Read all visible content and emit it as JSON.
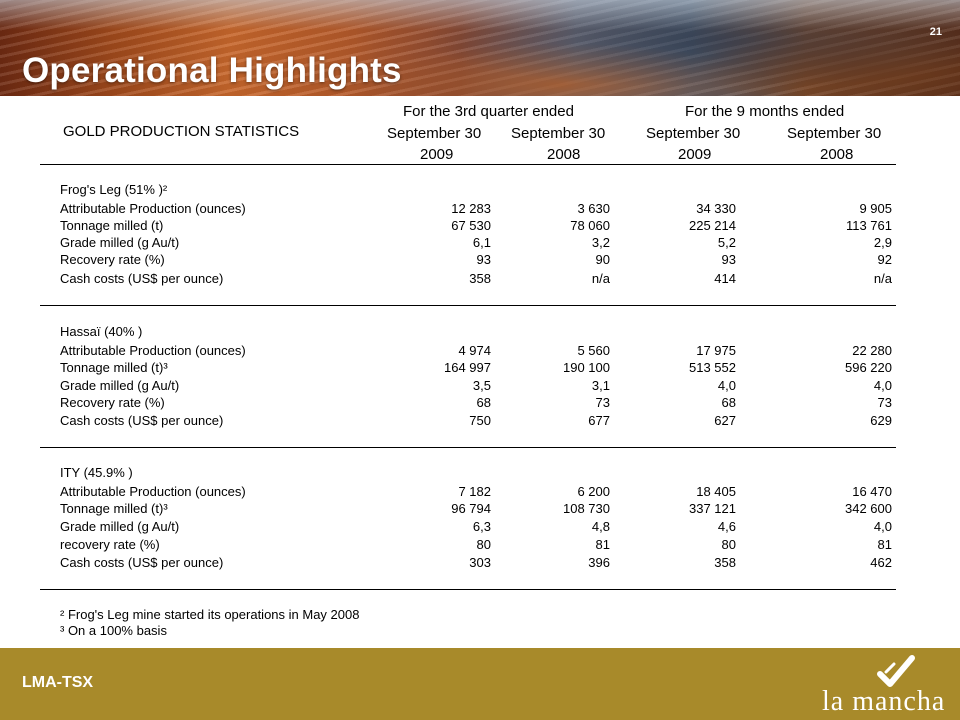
{
  "slide": {
    "title": "Operational Highlights",
    "page_number": "21"
  },
  "table": {
    "main_label": "GOLD PRODUCTION STATISTICS",
    "group_headers": [
      "For the 3rd quarter ended",
      "For the 9 months ended"
    ],
    "columns": [
      {
        "month": "September 30",
        "year": "2009"
      },
      {
        "month": "September 30",
        "year": "2008"
      },
      {
        "month": "September 30",
        "year": "2009"
      },
      {
        "month": "September 30",
        "year": "2008"
      }
    ],
    "sections": [
      {
        "title": "Frog's Leg (51% )²",
        "rows": [
          {
            "label": "Attributable Production (ounces)",
            "values": [
              "12 283",
              "3 630",
              "34 330",
              "9 905"
            ]
          },
          {
            "label": "Tonnage milled (t)",
            "values": [
              "67 530",
              "78 060",
              "225 214",
              "113 761"
            ]
          },
          {
            "label": "Grade milled (g Au/t)",
            "values": [
              "6,1",
              "3,2",
              "5,2",
              "2,9"
            ]
          },
          {
            "label": "Recovery rate (%)",
            "values": [
              "93",
              "90",
              "93",
              "92"
            ]
          },
          {
            "label": "Cash costs (US$ per ounce)",
            "values": [
              "358",
              "n/a",
              "414",
              "n/a"
            ]
          }
        ]
      },
      {
        "title": "Hassaï (40% )",
        "rows": [
          {
            "label": "Attributable Production (ounces)",
            "values": [
              "4 974",
              "5 560",
              "17 975",
              "22 280"
            ]
          },
          {
            "label": "Tonnage milled (t)³",
            "values": [
              "164 997",
              "190 100",
              "513 552",
              "596 220"
            ]
          },
          {
            "label": "Grade milled (g Au/t)",
            "values": [
              "3,5",
              "3,1",
              "4,0",
              "4,0"
            ]
          },
          {
            "label": "Recovery rate (%)",
            "values": [
              "68",
              "73",
              "68",
              "73"
            ]
          },
          {
            "label": "Cash costs (US$ per ounce)",
            "values": [
              "750",
              "677",
              "627",
              "629"
            ]
          }
        ]
      },
      {
        "title": "ITY (45.9% )",
        "rows": [
          {
            "label": "Attributable Production (ounces)",
            "values": [
              "7 182",
              "6 200",
              "18 405",
              "16 470"
            ]
          },
          {
            "label": "Tonnage milled (t)³",
            "values": [
              "96 794",
              "108 730",
              "337 121",
              "342 600"
            ]
          },
          {
            "label": "Grade milled (g Au/t)",
            "values": [
              "6,3",
              "4,8",
              "4,6",
              "4,0"
            ]
          },
          {
            "label": "recovery rate (%)",
            "values": [
              "80",
              "81",
              "80",
              "81"
            ]
          },
          {
            "label": "Cash costs (US$ per ounce)",
            "values": [
              "303",
              "396",
              "358",
              "462"
            ]
          }
        ]
      }
    ],
    "footnotes": [
      "² Frog's Leg mine started its operations in May 2008",
      "³ On a 100% basis"
    ]
  },
  "footer": {
    "ticker": "LMA-TSX",
    "logo_text": "la mancha"
  },
  "colors": {
    "footer_bar": "#a88a2a",
    "title_text": "#ffffff",
    "rule": "#000000"
  }
}
